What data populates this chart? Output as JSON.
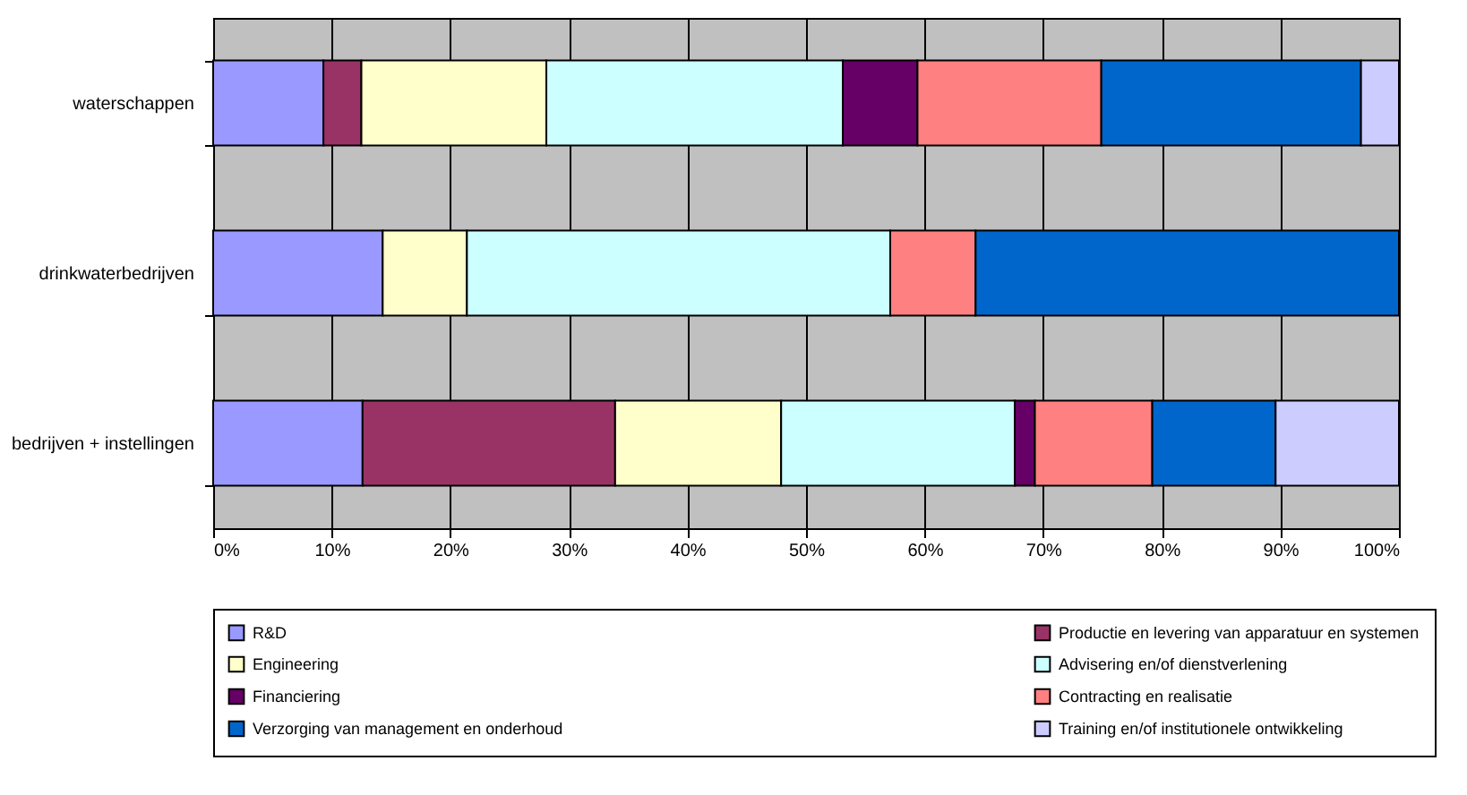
{
  "chart_data": {
    "type": "bar",
    "orientation": "horizontal",
    "stacked": true,
    "categories": [
      "waterschappen",
      "drinkwaterbedrijven",
      "bedrijven + instellingen"
    ],
    "series": [
      {
        "name": "R&D",
        "color": "#9999ff",
        "values": [
          9.3,
          14.3,
          12.6
        ]
      },
      {
        "name": "Productie en levering van apparatuur en systemen",
        "color": "#993366",
        "values": [
          3.2,
          null,
          21.3
        ]
      },
      {
        "name": "Engineering",
        "color": "#ffffcc",
        "values": [
          15.6,
          7.1,
          14.0
        ]
      },
      {
        "name": "Advisering en/of dienstverlening",
        "color": "#ccffff",
        "values": [
          25.0,
          35.7,
          19.7
        ]
      },
      {
        "name": "Financiering",
        "color": "#660066",
        "values": [
          6.3,
          null,
          1.7
        ]
      },
      {
        "name": "Contracting en realisatie",
        "color": "#ff8080",
        "values": [
          15.5,
          7.2,
          9.9
        ]
      },
      {
        "name": "Verzorging van management en onderhoud",
        "color": "#0066cc",
        "values": [
          21.9,
          35.7,
          10.4
        ]
      },
      {
        "name": "Training en/of institutionele ontwikkeling",
        "color": "#ccccff",
        "values": [
          3.2,
          null,
          10.4
        ]
      }
    ],
    "xlim": [
      0,
      100
    ],
    "xticks": [
      {
        "value": 0,
        "label": "0%"
      },
      {
        "value": 10,
        "label": "10%"
      },
      {
        "value": 20,
        "label": "20%"
      },
      {
        "value": 30,
        "label": "30%"
      },
      {
        "value": 40,
        "label": "40%"
      },
      {
        "value": 50,
        "label": "50%"
      },
      {
        "value": 60,
        "label": "60%"
      },
      {
        "value": 70,
        "label": "70%"
      },
      {
        "value": 80,
        "label": "80%"
      },
      {
        "value": 90,
        "label": "90%"
      },
      {
        "value": 100,
        "label": "100%"
      }
    ],
    "grid": "x",
    "legend": "bottom"
  }
}
